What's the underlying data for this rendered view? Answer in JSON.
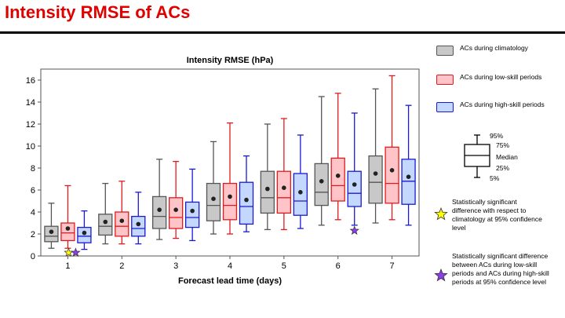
{
  "page": {
    "title": "Intensity RMSE of ACs"
  },
  "colors": {
    "climatology_fill": "#c8c8c8",
    "climatology_edge": "#555555",
    "low_fill": "#ffc4c8",
    "low_edge": "#e31a1c",
    "high_fill": "#c4d8ff",
    "high_edge": "#1a1ad0",
    "yellow_star": "#ffff00",
    "purple_star": "#8e3cf0"
  },
  "legend": {
    "climatology": "ACs during climatology",
    "low_skill": "ACs during low-skill periods",
    "high_skill": "ACs during high-skill periods"
  },
  "box_key": {
    "p95": "95%",
    "p75": "75%",
    "median": "Median",
    "p25": "25%",
    "p5": "5%"
  },
  "notes": {
    "yellow_star": "Statistically significant difference with respect to climatology at 95% confidence level",
    "purple_star": "Statistically significant difference between ACs during low-skill periods and ACs during high-skill periods at 95% confidence level"
  },
  "chart_data": {
    "type": "box",
    "title": "Intensity RMSE (hPa)",
    "xlabel": "Forecast lead time (days)",
    "ylabel": "",
    "categories": [
      "1",
      "2",
      "3",
      "4",
      "5",
      "6",
      "7"
    ],
    "ylim": [
      0,
      17
    ],
    "yticks": [
      0,
      2,
      4,
      6,
      8,
      10,
      12,
      14,
      16
    ],
    "series": [
      {
        "name": "climatology",
        "boxes": [
          {
            "p5": 0.7,
            "p25": 1.3,
            "median": 1.8,
            "p75": 2.7,
            "p95": 4.8,
            "mean": 2.2
          },
          {
            "p5": 1.1,
            "p25": 1.9,
            "median": 2.7,
            "p75": 3.8,
            "p95": 6.6,
            "mean": 3.1
          },
          {
            "p5": 1.5,
            "p25": 2.5,
            "median": 3.6,
            "p75": 5.4,
            "p95": 8.8,
            "mean": 4.2
          },
          {
            "p5": 2.0,
            "p25": 3.2,
            "median": 4.6,
            "p75": 6.6,
            "p95": 10.4,
            "mean": 5.2
          },
          {
            "p5": 2.4,
            "p25": 3.9,
            "median": 5.3,
            "p75": 7.7,
            "p95": 12.0,
            "mean": 6.1
          },
          {
            "p5": 2.8,
            "p25": 4.6,
            "median": 5.8,
            "p75": 8.4,
            "p95": 14.5,
            "mean": 6.8
          },
          {
            "p5": 3.0,
            "p25": 4.8,
            "median": 6.7,
            "p75": 9.1,
            "p95": 15.2,
            "mean": 7.5
          }
        ]
      },
      {
        "name": "low_skill",
        "boxes": [
          {
            "p5": 0.7,
            "p25": 1.4,
            "median": 2.1,
            "p75": 3.0,
            "p95": 6.4,
            "mean": 2.5
          },
          {
            "p5": 1.1,
            "p25": 1.8,
            "median": 2.7,
            "p75": 4.0,
            "p95": 6.8,
            "mean": 3.2
          },
          {
            "p5": 1.6,
            "p25": 2.5,
            "median": 3.5,
            "p75": 5.3,
            "p95": 8.6,
            "mean": 4.2
          },
          {
            "p5": 2.0,
            "p25": 3.3,
            "median": 4.6,
            "p75": 6.6,
            "p95": 12.1,
            "mean": 5.4
          },
          {
            "p5": 2.4,
            "p25": 3.9,
            "median": 5.3,
            "p75": 7.7,
            "p95": 12.5,
            "mean": 6.2
          },
          {
            "p5": 3.3,
            "p25": 5.0,
            "median": 6.4,
            "p75": 8.9,
            "p95": 14.8,
            "mean": 7.3
          },
          {
            "p5": 3.3,
            "p25": 4.8,
            "median": 6.6,
            "p75": 9.9,
            "p95": 16.4,
            "mean": 7.8
          }
        ]
      },
      {
        "name": "high_skill",
        "boxes": [
          {
            "p5": 0.6,
            "p25": 1.2,
            "median": 1.8,
            "p75": 2.6,
            "p95": 4.1,
            "mean": 2.1
          },
          {
            "p5": 1.1,
            "p25": 1.8,
            "median": 2.5,
            "p75": 3.6,
            "p95": 5.8,
            "mean": 2.9
          },
          {
            "p5": 1.4,
            "p25": 2.6,
            "median": 3.5,
            "p75": 4.9,
            "p95": 7.9,
            "mean": 4.1
          },
          {
            "p5": 2.2,
            "p25": 2.9,
            "median": 4.5,
            "p75": 6.7,
            "p95": 9.1,
            "mean": 5.1
          },
          {
            "p5": 2.5,
            "p25": 3.7,
            "median": 5.0,
            "p75": 7.5,
            "p95": 11.0,
            "mean": 5.8
          },
          {
            "p5": 2.8,
            "p25": 4.5,
            "median": 5.7,
            "p75": 7.7,
            "p95": 13.0,
            "mean": 6.5
          },
          {
            "p5": 2.8,
            "p25": 4.7,
            "median": 6.8,
            "p75": 8.8,
            "p95": 13.7,
            "mean": 7.2
          }
        ]
      }
    ],
    "markers": [
      {
        "type": "yellow_star",
        "category": "1",
        "series": "low_skill",
        "y": 0.3
      },
      {
        "type": "purple_star",
        "category": "1",
        "series": "high_skill",
        "y": 0.3
      },
      {
        "type": "purple_star",
        "category": "6",
        "series": "high_skill",
        "y": 2.3
      }
    ]
  }
}
